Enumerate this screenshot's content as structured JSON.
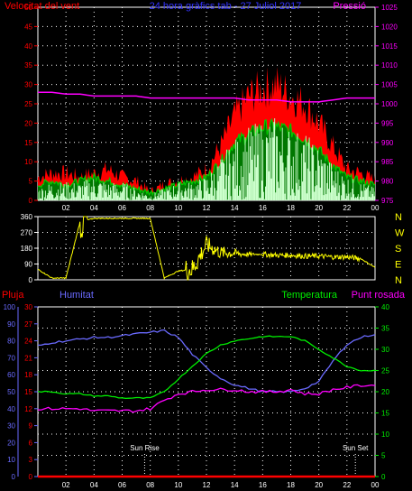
{
  "chart_data": [
    {
      "type": "line",
      "panel": "wind-pressure",
      "title": "24 hora gràfics tab - 27 Juliol 2017",
      "left_label": "Velocitat del vent",
      "right_label": "Pressió",
      "ylim_left": [
        0,
        50
      ],
      "yticks_left": [
        "0",
        "5",
        "10",
        "15",
        "20",
        "25",
        "30",
        "35",
        "40",
        "45",
        "50"
      ],
      "ylim_right": [
        975,
        1025
      ],
      "yticks_right": [
        "975",
        "980",
        "985",
        "990",
        "995",
        "1000",
        "1005",
        "1010",
        "1015",
        "1020",
        "1025"
      ],
      "xticks": [
        "02",
        "04",
        "06",
        "08",
        "10",
        "12",
        "14",
        "16",
        "18",
        "20",
        "22",
        "00"
      ],
      "grid": true,
      "hours": [
        0,
        1,
        2,
        3,
        4,
        5,
        6,
        7,
        8,
        9,
        10,
        11,
        12,
        13,
        14,
        15,
        16,
        17,
        18,
        19,
        20,
        21,
        22,
        23,
        24
      ],
      "series": [
        {
          "name": "gust",
          "color": "#ff0000",
          "values": [
            6,
            7,
            7,
            6,
            7,
            8,
            6,
            5,
            2,
            4,
            5,
            6,
            8,
            14,
            22,
            27,
            29,
            30,
            27,
            25,
            20,
            14,
            8,
            7,
            5
          ]
        },
        {
          "name": "speed",
          "color": "#00cc00",
          "values": [
            4,
            5,
            4,
            5,
            6,
            5,
            4,
            3,
            2,
            3,
            4,
            5,
            6,
            10,
            15,
            17,
            19,
            19,
            18,
            16,
            13,
            9,
            6,
            5,
            4
          ]
        },
        {
          "name": "average",
          "color": "#ccffcc",
          "values": [
            2,
            3,
            3,
            3,
            4,
            3,
            3,
            2,
            1,
            2,
            3,
            3,
            4,
            7,
            10,
            12,
            13,
            14,
            12,
            11,
            9,
            6,
            4,
            3,
            2
          ]
        },
        {
          "name": "pressure",
          "color": "#ff00ff",
          "values": [
            1003,
            1003,
            1002.5,
            1002.5,
            1002,
            1002,
            1002,
            1002,
            1001.5,
            1001.5,
            1001.5,
            1001.5,
            1001.5,
            1001.5,
            1001.5,
            1001,
            1001,
            1001,
            1000.5,
            1000.5,
            1000.5,
            1001,
            1001.5,
            1001.5,
            1001.5
          ]
        }
      ]
    },
    {
      "type": "line",
      "panel": "wind-direction",
      "ylim": [
        0,
        360
      ],
      "yticks": [
        "0",
        "90",
        "180",
        "270",
        "360"
      ],
      "compass": [
        "N",
        "W",
        "S",
        "E",
        "N"
      ],
      "series": [
        {
          "name": "direction",
          "color": "#ffff00",
          "values": [
            60,
            10,
            10,
            330,
            350,
            350,
            350,
            350,
            350,
            10,
            50,
            60,
            200,
            155,
            150,
            145,
            145,
            140,
            140,
            135,
            135,
            130,
            130,
            120,
            70
          ]
        }
      ]
    },
    {
      "type": "line",
      "panel": "temperature-humidity",
      "labels": {
        "rain": "Pluja",
        "humidity": "Humitat",
        "temperature": "Temperatura",
        "dew": "Punt rosada"
      },
      "ylim_humidity": [
        0,
        100
      ],
      "yticks_humidity": [
        "0",
        "10",
        "20",
        "30",
        "40",
        "50",
        "60",
        "70",
        "80",
        "90",
        "100"
      ],
      "ylim_rain": [
        0,
        30
      ],
      "yticks_rain": [
        "0",
        "3",
        "6",
        "9",
        "12",
        "15",
        "18",
        "21",
        "24",
        "27",
        "30"
      ],
      "ylim_temp": [
        0,
        40
      ],
      "yticks_temp": [
        "0",
        "5",
        "10",
        "15",
        "20",
        "25",
        "30",
        "35",
        "40"
      ],
      "xticks": [
        "02",
        "04",
        "06",
        "08",
        "10",
        "12",
        "14",
        "16",
        "18",
        "20",
        "22",
        "00"
      ],
      "annotations": [
        {
          "hour": 7.6,
          "text": "Sun Rise"
        },
        {
          "hour": 22.6,
          "text": "Sun Set"
        }
      ],
      "series": [
        {
          "name": "humidity",
          "color": "#6a6aff",
          "values": [
            77,
            79,
            80,
            81,
            82,
            82,
            83,
            84,
            85,
            86,
            82,
            72,
            64,
            58,
            54,
            52,
            50,
            50,
            50,
            52,
            56,
            68,
            78,
            82,
            84
          ]
        },
        {
          "name": "temperature",
          "color": "#00ee00",
          "values": [
            20,
            20,
            19.5,
            19.5,
            19,
            19,
            18.5,
            18.5,
            18.5,
            20,
            23,
            26,
            29,
            31,
            32,
            32.5,
            33,
            33,
            33,
            32,
            30,
            28,
            26,
            25,
            25
          ]
        },
        {
          "name": "dew",
          "color": "#ff00ff",
          "values": [
            16,
            16,
            16,
            16,
            15.5,
            15.5,
            15.5,
            15.5,
            16,
            18,
            19.5,
            20,
            20.5,
            20.5,
            20.5,
            20,
            20,
            20,
            20.5,
            19.5,
            19.5,
            20.5,
            21,
            21.5,
            21.5
          ]
        },
        {
          "name": "rain",
          "color": "#ff0000",
          "values": [
            0,
            0,
            0,
            0,
            0,
            0,
            0,
            0,
            0,
            0,
            0,
            0,
            0,
            0,
            0,
            0,
            0,
            0,
            0,
            0,
            0,
            0,
            0,
            0,
            0
          ]
        }
      ]
    }
  ]
}
